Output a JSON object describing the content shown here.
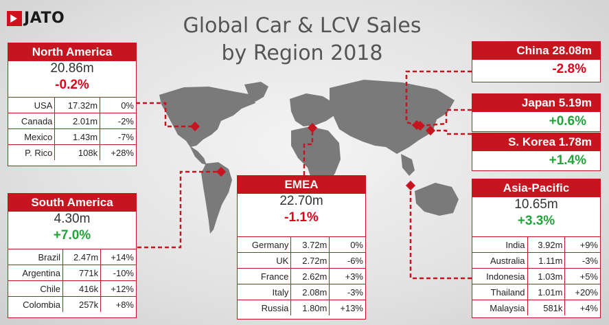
{
  "logo": "JATO",
  "title_line1": "Global Car & LCV Sales",
  "title_line2": "by Region 2018",
  "colors": {
    "accent": "#c7151f",
    "negative": "#e0001b",
    "positive": "#22a33a",
    "land": "#7a7a7a"
  },
  "chart_data": {
    "type": "table",
    "title": "Global Car & LCV Sales by Region 2018",
    "regions": [
      {
        "name": "North America",
        "total": "20.86m",
        "change": "-0.2%",
        "rows": [
          [
            "USA",
            "17.32m",
            "0%"
          ],
          [
            "Canada",
            "2.01m",
            "-2%"
          ],
          [
            "Mexico",
            "1.43m",
            "-7%"
          ],
          [
            "P. Rico",
            "108k",
            "+28%"
          ]
        ]
      },
      {
        "name": "South America",
        "total": "4.30m",
        "change": "+7.0%",
        "rows": [
          [
            "Brazil",
            "2.47m",
            "+14%"
          ],
          [
            "Argentina",
            "771k",
            "-10%"
          ],
          [
            "Chile",
            "416k",
            "+12%"
          ],
          [
            "Colombia",
            "257k",
            "+8%"
          ]
        ]
      },
      {
        "name": "EMEA",
        "total": "22.70m",
        "change": "-1.1%",
        "rows": [
          [
            "Germany",
            "3.72m",
            "0%"
          ],
          [
            "UK",
            "2.72m",
            "-6%"
          ],
          [
            "France",
            "2.62m",
            "+3%"
          ],
          [
            "Italy",
            "2.08m",
            "-3%"
          ],
          [
            "Russia",
            "1.80m",
            "+13%"
          ]
        ]
      },
      {
        "name": "China",
        "total": "28.08m",
        "change": "-2.8%",
        "rows": []
      },
      {
        "name": "Japan",
        "total": "5.19m",
        "change": "+0.6%",
        "rows": []
      },
      {
        "name": "S. Korea",
        "total": "1.78m",
        "change": "+1.4%",
        "rows": []
      },
      {
        "name": "Asia-Pacific",
        "total": "10.65m",
        "change": "+3.3%",
        "rows": [
          [
            "India",
            "3.92m",
            "+9%"
          ],
          [
            "Australia",
            "1.11m",
            "-3%"
          ],
          [
            "Indonesia",
            "1.03m",
            "+5%"
          ],
          [
            "Thailand",
            "1.01m",
            "+20%"
          ],
          [
            "Malaysia",
            "581k",
            "+4%"
          ]
        ]
      }
    ]
  }
}
